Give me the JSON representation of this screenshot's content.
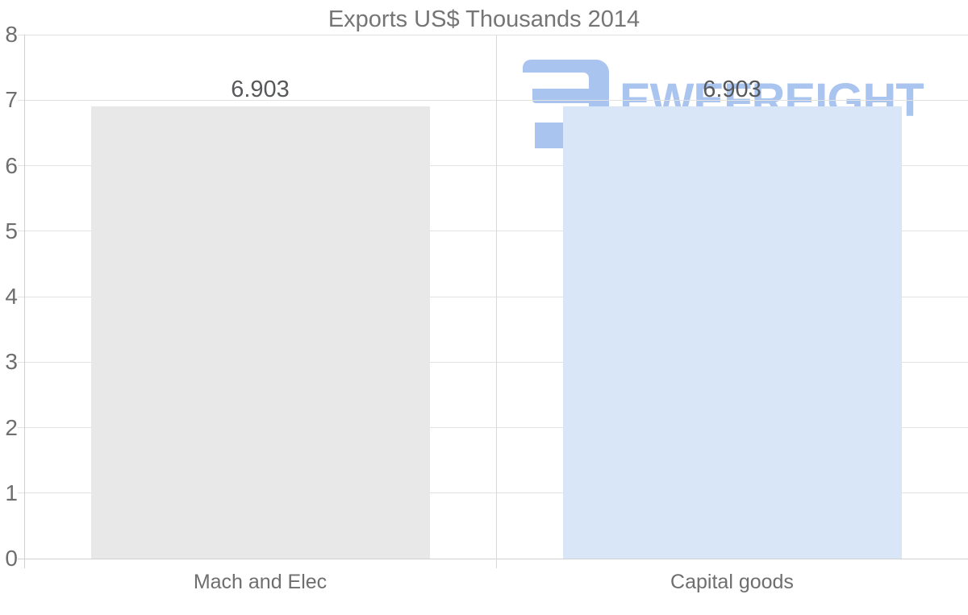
{
  "chart_data": {
    "type": "bar",
    "title": "Exports US$ Thousands 2014",
    "categories": [
      "Mach and Elec",
      "Capital goods"
    ],
    "values": [
      6.903,
      6.903
    ],
    "value_labels": [
      "6.903",
      "6.903"
    ],
    "series_colors": [
      "#e8e8e8",
      "#d9e6f8"
    ],
    "xlabel": "",
    "ylabel": "",
    "ylim": [
      0,
      8
    ],
    "yticks": [
      0,
      1,
      2,
      3,
      4,
      5,
      6,
      7,
      8
    ],
    "grid": true,
    "legend": false
  },
  "watermark": {
    "text": "EWEFREIGHT",
    "icon": "ewefreight-logo-icon",
    "color": "#a9c4ee"
  },
  "colors": {
    "background": "#ffffff",
    "gridline": "#e2e2e2",
    "axis_line": "#d0d0d0",
    "category_divider": "#d8d8d8",
    "title_text": "#757575",
    "tick_text": "#6e6e6e",
    "category_text": "#6e6e6e",
    "value_text": "#57585a",
    "bar_gray": "#e8e8e8",
    "bar_blue": "#d9e6f8",
    "watermark_blue": "#a9c4ee"
  }
}
